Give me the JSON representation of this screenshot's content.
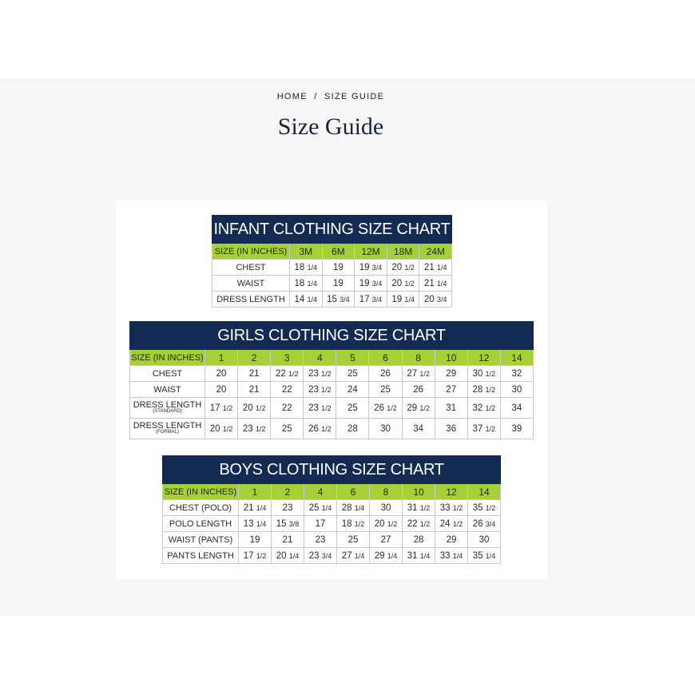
{
  "breadcrumb": {
    "home": "HOME",
    "separator": "/",
    "current": "SIZE GUIDE"
  },
  "page_title": "Size Guide",
  "colors": {
    "navy": "#132a52",
    "green": "#a6cf38"
  },
  "charts": [
    {
      "id": "infant",
      "title": "INFANT CLOTHING SIZE CHART",
      "header_label": "SIZE (IN INCHES)",
      "sizes": [
        "3M",
        "6M",
        "12M",
        "18M",
        "24M"
      ],
      "rows": [
        {
          "label": "CHEST",
          "values": [
            "18 1/4",
            "19",
            "19 3/4",
            "20 1/2",
            "21 1/4"
          ]
        },
        {
          "label": "WAIST",
          "values": [
            "18 1/4",
            "19",
            "19 3/4",
            "20 1/2",
            "21 1/4"
          ]
        },
        {
          "label": "DRESS LENGTH",
          "values": [
            "14 1/4",
            "15 3/4",
            "17 3/4",
            "19 1/4",
            "20 3/4"
          ]
        }
      ]
    },
    {
      "id": "girls",
      "title": "GIRLS CLOTHING SIZE CHART",
      "header_label": "SIZE (IN INCHES)",
      "sizes": [
        "1",
        "2",
        "3",
        "4",
        "5",
        "6",
        "8",
        "10",
        "12",
        "14"
      ],
      "rows": [
        {
          "label": "CHEST",
          "values": [
            "20",
            "21",
            "22 1/2",
            "23 1/2",
            "25",
            "26",
            "27 1/2",
            "29",
            "30 1/2",
            "32"
          ]
        },
        {
          "label": "WAIST",
          "values": [
            "20",
            "21",
            "22",
            "23 1/2",
            "24",
            "25",
            "26",
            "27",
            "28 1/2",
            "30"
          ]
        },
        {
          "label": "DRESS LENGTH",
          "sublabel": "(STANDARD)",
          "values": [
            "17 1/2",
            "20 1/2",
            "22",
            "23 1/2",
            "25",
            "26 1/2",
            "29 1/2",
            "31",
            "32 1/2",
            "34"
          ]
        },
        {
          "label": "DRESS LENGTH",
          "sublabel": "(FORMAL)",
          "values": [
            "20 1/2",
            "23 1/2",
            "25",
            "26 1/2",
            "28",
            "30",
            "34",
            "36",
            "37 1/2",
            "39"
          ]
        }
      ]
    },
    {
      "id": "boys",
      "title": "BOYS CLOTHING SIZE CHART",
      "header_label": "SIZE (IN INCHES)",
      "sizes": [
        "1",
        "2",
        "4",
        "6",
        "8",
        "10",
        "12",
        "14"
      ],
      "rows": [
        {
          "label": "CHEST (POLO)",
          "values": [
            "21 1/4",
            "23",
            "25 1/4",
            "28 1/4",
            "30",
            "31 1/2",
            "33 1/2",
            "35 1/2"
          ]
        },
        {
          "label": "POLO LENGTH",
          "values": [
            "13 1/4",
            "15 3/8",
            "17",
            "18 1/2",
            "20 1/2",
            "22 1/2",
            "24 1/2",
            "26 3/4"
          ]
        },
        {
          "label": "WAIST (PANTS)",
          "values": [
            "19",
            "21",
            "23",
            "25",
            "27",
            "28",
            "29",
            "30"
          ]
        },
        {
          "label": "PANTS LENGTH",
          "values": [
            "17 1/2",
            "20 1/4",
            "23 3/4",
            "27 1/4",
            "29 1/4",
            "31 1/4",
            "33 1/4",
            "35 1/4"
          ]
        }
      ]
    }
  ]
}
